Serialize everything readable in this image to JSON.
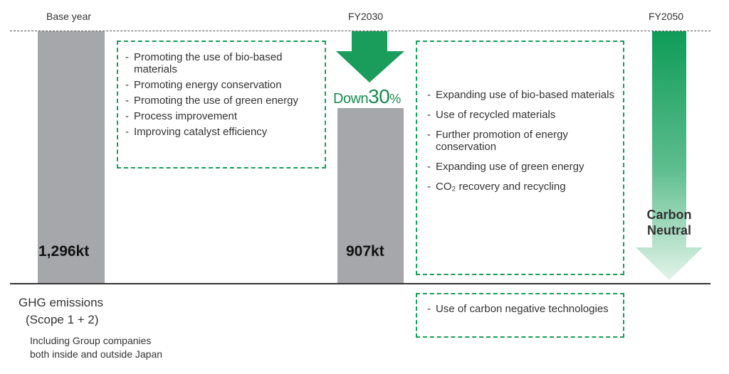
{
  "periods": {
    "base": "Base year",
    "fy2030": "FY2030",
    "fy2050": "FY2050"
  },
  "base_bar": {
    "value_label": "1,296kt"
  },
  "fy2030_bar": {
    "value_label": "907kt"
  },
  "reduction": {
    "prefix": "Down",
    "number": "30",
    "unit": "%"
  },
  "box1": {
    "items": [
      "Promoting the use of bio-based materials",
      "Promoting energy conservation",
      "Promoting the use of green energy",
      "Process improvement",
      "Improving catalyst efficiency"
    ]
  },
  "box2": {
    "items": [
      "Expanding use of bio-based materials",
      "Use of recycled materials",
      "Further promotion of energy conservation",
      "Expanding use of green energy",
      "CO₂ recovery and recycling"
    ]
  },
  "box3": {
    "items": [
      "Use of carbon negative technologies"
    ]
  },
  "carbon_neutral": {
    "line1": "Carbon",
    "line2": "Neutral"
  },
  "ghg": {
    "title": "GHG emissions",
    "scope": "(Scope 1 + 2)",
    "note_line1": "Including Group companies",
    "note_line2": "both inside and outside Japan"
  },
  "colors": {
    "accent_green": "#1a9c5a",
    "bar_gray": "#a6a7aa"
  }
}
